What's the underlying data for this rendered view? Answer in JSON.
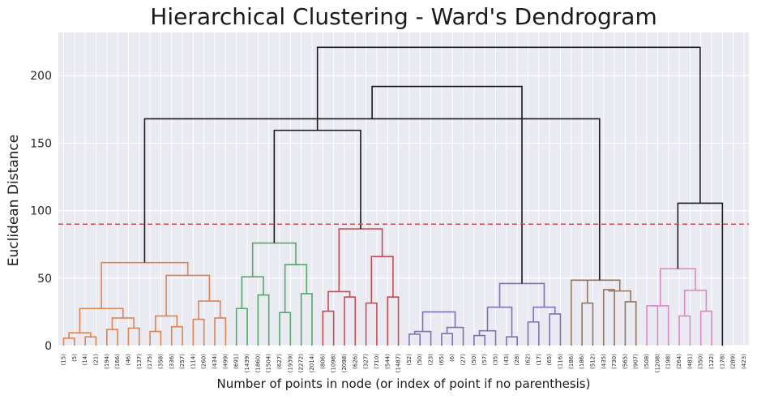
{
  "chart_data": {
    "type": "dendrogram",
    "title": "Hierarchical Clustering - Ward's Dendrogram",
    "xlabel": "Number of points in node (or index of point if no parenthesis)",
    "ylabel": "Euclidean Distance",
    "ylim": [
      0,
      232
    ],
    "yticks": [
      0,
      50,
      100,
      150,
      200
    ],
    "grid": true,
    "threshold": {
      "y": 90,
      "color": "#c44e52",
      "style": "dashed"
    },
    "leaf_labels": [
      "(15)",
      "(5)",
      "(14)",
      "(21)",
      "(194)",
      "(166)",
      "(46)",
      "(137)",
      "(175)",
      "(358)",
      "(336)",
      "(257)",
      "(114)",
      "(260)",
      "(434)",
      "(499)",
      "(691)",
      "(1439)",
      "(1860)",
      "(1504)",
      "(627)",
      "(1939)",
      "(2272)",
      "(2014)",
      "(806)",
      "(1098)",
      "(2098)",
      "(626)",
      "(327)",
      "(710)",
      "(544)",
      "(1487)",
      "(52)",
      "(50)",
      "(23)",
      "(65)",
      "(6)",
      "(27)",
      "(50)",
      "(57)",
      "(35)",
      "(43)",
      "(28)",
      "(62)",
      "(17)",
      "(65)",
      "(116)",
      "(186)",
      "(186)",
      "(512)",
      "(435)",
      "(730)",
      "(565)",
      "(907)",
      "(508)",
      "(1208)",
      "(198)",
      "(264)",
      "(481)",
      "(350)",
      "(122)",
      "(178)",
      "(289)",
      "(423)"
    ],
    "cluster_colors": [
      "#dd8452",
      "#55a868",
      "#c44e52",
      "#8172b3",
      "#937860",
      "#da8bc3"
    ],
    "link_color": "#1a1a1a",
    "links": [
      {
        "a": "L0",
        "b": "L1",
        "h": 5.5,
        "c": 0
      },
      {
        "a": "L2",
        "b": "L3",
        "h": 6.5,
        "c": 0
      },
      {
        "a": "N0",
        "b": "N1",
        "h": 9.5,
        "c": 0
      },
      {
        "a": "L4",
        "b": "L5",
        "h": 12,
        "c": 0
      },
      {
        "a": "L6",
        "b": "L7",
        "h": 13,
        "c": 0
      },
      {
        "a": "N3",
        "b": "N4",
        "h": 20.5,
        "c": 0
      },
      {
        "a": "N2",
        "b": "N5",
        "h": 27.5,
        "c": 0
      },
      {
        "a": "L8",
        "b": "L9",
        "h": 10.5,
        "c": 0
      },
      {
        "a": "L10",
        "b": "L11",
        "h": 14,
        "c": 0
      },
      {
        "a": "N7",
        "b": "N8",
        "h": 22,
        "c": 0
      },
      {
        "a": "L12",
        "b": "L13",
        "h": 19.5,
        "c": 0
      },
      {
        "a": "L14",
        "b": "L15",
        "h": 20.5,
        "c": 0
      },
      {
        "a": "N10",
        "b": "N11",
        "h": 33,
        "c": 0
      },
      {
        "a": "N9",
        "b": "N12",
        "h": 52,
        "c": 0
      },
      {
        "a": "N6",
        "b": "N13",
        "h": 61.5,
        "c": 0
      },
      {
        "a": "L16",
        "b": "L17",
        "h": 27.5,
        "c": 1
      },
      {
        "a": "L18",
        "b": "L19",
        "h": 37.5,
        "c": 1
      },
      {
        "a": "N15",
        "b": "N16",
        "h": 51,
        "c": 1
      },
      {
        "a": "L20",
        "b": "L21",
        "h": 24.5,
        "c": 1
      },
      {
        "a": "L22",
        "b": "L23",
        "h": 38.5,
        "c": 1
      },
      {
        "a": "N18",
        "b": "N19",
        "h": 60,
        "c": 1
      },
      {
        "a": "N17",
        "b": "N20",
        "h": 76,
        "c": 1
      },
      {
        "a": "L24",
        "b": "L25",
        "h": 25.5,
        "c": 2
      },
      {
        "a": "L26",
        "b": "L27",
        "h": 36,
        "c": 2
      },
      {
        "a": "N22",
        "b": "N23",
        "h": 40,
        "c": 2
      },
      {
        "a": "L28",
        "b": "L29",
        "h": 31.5,
        "c": 2
      },
      {
        "a": "L30",
        "b": "L31",
        "h": 36,
        "c": 2
      },
      {
        "a": "N25",
        "b": "N26",
        "h": 66,
        "c": 2
      },
      {
        "a": "N24",
        "b": "N27",
        "h": 86.5,
        "c": 2
      },
      {
        "a": "L32",
        "b": "L33",
        "h": 8.5,
        "c": 3
      },
      {
        "a": "N29",
        "b": "L34",
        "h": 10.5,
        "c": 3
      },
      {
        "a": "L35",
        "b": "L36",
        "h": 9,
        "c": 3
      },
      {
        "a": "N31",
        "b": "L37",
        "h": 13.5,
        "c": 3
      },
      {
        "a": "N30",
        "b": "N32",
        "h": 25,
        "c": 3
      },
      {
        "a": "L38",
        "b": "L39",
        "h": 7.5,
        "c": 3
      },
      {
        "a": "L40",
        "b": "N34",
        "h": 11,
        "c": 3
      },
      {
        "a": "L41",
        "b": "L42",
        "h": 6.5,
        "c": 3
      },
      {
        "a": "N35",
        "b": "N36",
        "h": 28.5,
        "c": 3
      },
      {
        "a": "L43",
        "b": "L44",
        "h": 17.5,
        "c": 3
      },
      {
        "a": "L45",
        "b": "L46",
        "h": 23.5,
        "c": 3
      },
      {
        "a": "N38",
        "b": "N39",
        "h": 28.5,
        "c": 3
      },
      {
        "a": "N37",
        "b": "N40",
        "h": 46,
        "c": 3
      },
      {
        "a": "L48",
        "b": "L49",
        "h": 31.5,
        "c": 4
      },
      {
        "a": "L47",
        "b": "N42",
        "h": 48.5,
        "c": 4
      },
      {
        "a": "L50",
        "b": "L51",
        "h": 41.5,
        "c": 4
      },
      {
        "a": "L52",
        "b": "L53",
        "h": 32.5,
        "c": 4
      },
      {
        "a": "N44",
        "b": "N45",
        "h": 40.5,
        "c": 4
      },
      {
        "a": "L54",
        "b": "L55",
        "h": 29.5,
        "c": 5
      },
      {
        "a": "L56",
        "b": "N47",
        "h": 29.5,
        "c": 5
      },
      {
        "a": "L57",
        "b": "L58",
        "h": 22,
        "c": 5
      },
      {
        "a": "L59",
        "b": "L60",
        "h": 25.5,
        "c": 5
      },
      {
        "a": "N49",
        "b": "N50",
        "h": 41,
        "c": 5
      },
      {
        "a": "N48",
        "b": "N51",
        "h": 57,
        "c": 5
      },
      {
        "a": "N43",
        "b": "N46",
        "h": 48.5,
        "c": 4
      },
      {
        "a": "N21",
        "b": "N28",
        "h": 159.5,
        "c": -1
      },
      {
        "a": "N14",
        "b": "N53",
        "h": 168,
        "c": -1
      },
      {
        "a": "N52",
        "b": "L61",
        "h": 105.5,
        "c": -1
      },
      {
        "a": "N41",
        "b": "N55",
        "h": 192,
        "c": -1
      },
      {
        "a": "N54",
        "b": "N56",
        "h": 221,
        "c": -1
      }
    ]
  }
}
